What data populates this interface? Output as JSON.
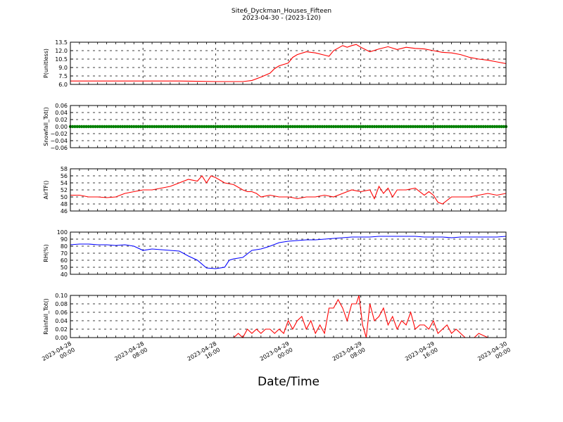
{
  "figure": {
    "title": "Site6_Dyckman_Houses_Fifteen",
    "subtitle": "2023-04-30 - (2023-120)",
    "xlabel": "Date/Time"
  },
  "chart_data": [
    {
      "type": "line",
      "ylabel": "P(unitless)",
      "ylim": [
        6.0,
        13.5
      ],
      "yticks": [
        "6.0",
        "7.5",
        "9.0",
        "10.5",
        "12.0",
        "13.5"
      ],
      "xlim": [
        0,
        48
      ],
      "x_unit": "hours since 2023-04-28 00:00",
      "xtick_labels": [
        "2023-04-28\n00:00",
        "2023-04-28\n08:00",
        "2023-04-28\n16:00",
        "2023-04-29\n00:00",
        "2023-04-29\n08:00",
        "2023-04-29\n16:00",
        "2023-04-30\n00:00"
      ],
      "grid": true,
      "color": "#ff0000",
      "series": [
        {
          "x": [
            0,
            2,
            4,
            6,
            8,
            10,
            12,
            14,
            16,
            17,
            18,
            18.5,
            19,
            20,
            21,
            22,
            22.5,
            23,
            24,
            24.5,
            25,
            26,
            27,
            28,
            28.5,
            29,
            30,
            30.5,
            31,
            31.5,
            32,
            33,
            34,
            35,
            36,
            37,
            38,
            39,
            40,
            41,
            42,
            43,
            44,
            45,
            46,
            47,
            48
          ],
          "y": [
            6.6,
            6.6,
            6.6,
            6.6,
            6.6,
            6.6,
            6.6,
            6.55,
            6.5,
            6.5,
            6.5,
            6.5,
            6.5,
            6.7,
            7.3,
            8.0,
            8.8,
            9.3,
            9.8,
            10.8,
            11.3,
            11.8,
            11.6,
            11.2,
            11.0,
            12.0,
            12.9,
            12.6,
            12.9,
            13.1,
            12.6,
            11.8,
            12.3,
            12.7,
            12.2,
            12.6,
            12.4,
            12.3,
            12.0,
            11.7,
            11.6,
            11.3,
            10.8,
            10.5,
            10.3,
            10.0,
            9.7
          ]
        }
      ]
    },
    {
      "type": "scatter",
      "ylabel": "Snowfall_Tot()",
      "ylim": [
        -0.06,
        0.06
      ],
      "yticks": [
        "−0.06",
        "−0.04",
        "−0.02",
        "0.00",
        "0.02",
        "0.04",
        "0.06"
      ],
      "grid": true,
      "color": "#008000",
      "series": [
        {
          "x_start": 0,
          "x_end": 48,
          "value": 0.0
        }
      ]
    },
    {
      "type": "line",
      "ylabel": "AirTF()",
      "ylim": [
        46,
        58
      ],
      "yticks": [
        "46",
        "48",
        "50",
        "52",
        "54",
        "56",
        "58"
      ],
      "grid": true,
      "color": "#ff0000",
      "series": [
        {
          "x": [
            0,
            1,
            2,
            3,
            4,
            5,
            6,
            7,
            8,
            9,
            10,
            11,
            12,
            13,
            14,
            14.5,
            15,
            15.5,
            16,
            17,
            18,
            19,
            19.5,
            20,
            20.5,
            21,
            22,
            23,
            24,
            24.5,
            25,
            26,
            27,
            28,
            29,
            30,
            31,
            32,
            33,
            33.5,
            34,
            34.5,
            35,
            35.5,
            36,
            37,
            38,
            39,
            39.5,
            40,
            40.5,
            41,
            42,
            43,
            44,
            45,
            46,
            47,
            48
          ],
          "y": [
            50.5,
            50.5,
            50,
            50,
            49.8,
            50,
            51,
            51.5,
            52,
            52,
            52.5,
            53,
            54,
            55,
            54.5,
            56,
            54,
            56,
            55.5,
            54,
            53.5,
            52,
            51.5,
            51.5,
            51,
            50,
            50.5,
            50,
            50,
            49.8,
            49.5,
            50,
            50,
            50.5,
            50,
            51,
            52,
            51.5,
            52,
            49.5,
            53,
            51,
            52.5,
            50,
            52,
            52,
            52.5,
            50.5,
            51.5,
            50.5,
            48.5,
            48,
            50,
            50,
            50,
            50.5,
            51,
            50.5,
            51
          ]
        }
      ]
    },
    {
      "type": "line",
      "ylabel": "RH(%)",
      "ylim": [
        40,
        100
      ],
      "yticks": [
        "40",
        "50",
        "60",
        "70",
        "80",
        "90",
        "100"
      ],
      "grid": true,
      "color": "#0000ff",
      "series": [
        {
          "x": [
            0,
            1,
            2,
            3,
            4,
            5,
            6,
            7,
            8,
            9,
            10,
            11,
            12,
            13,
            14,
            15,
            16,
            17,
            17.5,
            18,
            19,
            20,
            21,
            22,
            23,
            24,
            25,
            26,
            27,
            28,
            29,
            30,
            31,
            32,
            33,
            34,
            35,
            36,
            37,
            38,
            39,
            40,
            41,
            42,
            43,
            44,
            45,
            46,
            47,
            48
          ],
          "y": [
            82,
            83,
            83,
            82,
            82,
            81,
            82,
            80,
            74,
            76,
            75,
            74,
            73,
            66,
            60,
            49,
            48,
            50,
            60,
            62,
            64,
            74,
            76,
            80,
            85,
            87,
            88,
            89,
            89,
            90,
            91,
            92,
            93,
            93,
            93,
            94,
            94,
            94,
            94,
            94,
            93,
            93,
            93,
            92,
            93,
            93,
            93,
            93,
            93,
            94
          ]
        }
      ]
    },
    {
      "type": "line",
      "ylabel": "Rainfall_Tot()",
      "ylim": [
        0.0,
        0.1
      ],
      "yticks": [
        "0.00",
        "0.02",
        "0.04",
        "0.06",
        "0.08",
        "0.10"
      ],
      "grid": true,
      "color": "#ff0000",
      "series": [
        {
          "x": [
            0,
            18,
            18.5,
            19,
            19.5,
            20,
            20.5,
            21,
            21.5,
            22,
            22.5,
            23,
            23.5,
            24,
            24.5,
            25,
            25.5,
            26,
            26.5,
            27,
            27.5,
            28,
            28.5,
            29,
            29.5,
            30,
            30.5,
            31,
            31.5,
            31.8,
            32.2,
            32.6,
            33,
            33.5,
            34,
            34.5,
            35,
            35.5,
            36,
            36.5,
            37,
            37.5,
            38,
            38.5,
            39,
            39.5,
            40,
            40.5,
            41,
            41.5,
            42,
            42.5,
            43,
            43.5,
            44,
            44.5,
            45,
            46,
            48
          ],
          "y": [
            0,
            0,
            0.01,
            0,
            0.02,
            0.01,
            0.02,
            0.01,
            0.02,
            0.02,
            0.01,
            0.02,
            0.01,
            0.04,
            0.02,
            0.04,
            0.05,
            0.02,
            0.04,
            0.01,
            0.03,
            0.01,
            0.07,
            0.07,
            0.09,
            0.07,
            0.04,
            0.08,
            0.08,
            0.1,
            0.03,
            0,
            0.08,
            0.04,
            0.05,
            0.07,
            0.03,
            0.05,
            0.02,
            0.04,
            0.03,
            0.06,
            0.02,
            0.03,
            0.03,
            0.02,
            0.04,
            0.01,
            0.02,
            0.03,
            0.01,
            0.02,
            0.01,
            0,
            0,
            0,
            0.01,
            0,
            0
          ]
        }
      ]
    }
  ]
}
